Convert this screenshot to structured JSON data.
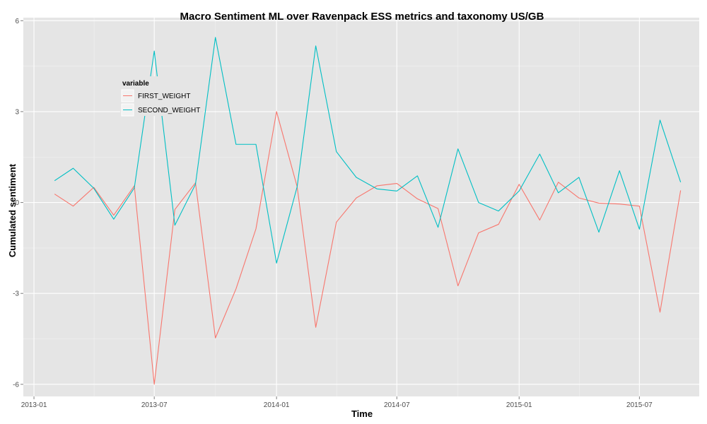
{
  "chart_data": {
    "type": "line",
    "title": "Macro Sentiment ML over Ravenpack ESS metrics and taxonomy US/GB",
    "xlabel": "Time",
    "ylabel": "Cumulated sentiment",
    "x_ticks": [
      "2013-01",
      "2013-07",
      "2014-01",
      "2014-07",
      "2015-01",
      "2015-07"
    ],
    "y_ticks": [
      -6,
      -3,
      0,
      3,
      6
    ],
    "ylim": [
      -6.4,
      6.1
    ],
    "xlim": [
      "2012-12-16",
      "2015-09-29"
    ],
    "grid": true,
    "background": "#e5e5e5",
    "legend": {
      "title": "variable",
      "placement": "top-left inside plot"
    },
    "x": [
      "2013-02-01",
      "2013-03-01",
      "2013-04-01",
      "2013-05-01",
      "2013-06-01",
      "2013-07-01",
      "2013-08-01",
      "2013-09-01",
      "2013-10-01",
      "2013-11-01",
      "2013-12-01",
      "2014-01-01",
      "2014-02-01",
      "2014-03-01",
      "2014-04-01",
      "2014-05-01",
      "2014-06-01",
      "2014-07-01",
      "2014-08-01",
      "2014-09-01",
      "2014-10-01",
      "2014-11-01",
      "2014-12-01",
      "2015-01-01",
      "2015-02-01",
      "2015-03-01",
      "2015-04-01",
      "2015-05-01",
      "2015-06-01",
      "2015-07-01",
      "2015-08-01",
      "2015-09-01"
    ],
    "series": [
      {
        "name": "FIRST_WEIGHT",
        "color": "#f8766d",
        "values": [
          0.28,
          -0.12,
          0.5,
          -0.42,
          0.55,
          -6.0,
          -0.23,
          0.65,
          -4.47,
          -2.85,
          -0.87,
          3.0,
          0.52,
          -4.12,
          -0.65,
          0.15,
          0.55,
          0.63,
          0.12,
          -0.2,
          -2.75,
          -1.0,
          -0.72,
          0.6,
          -0.58,
          0.67,
          0.15,
          -0.02,
          -0.05,
          -0.12,
          -3.62,
          0.4
        ]
      },
      {
        "name": "SECOND_WEIGHT",
        "color": "#00bfc4",
        "values": [
          0.72,
          1.13,
          0.47,
          -0.55,
          0.48,
          5.0,
          -0.75,
          0.6,
          5.45,
          1.92,
          1.92,
          -2.0,
          0.52,
          5.17,
          1.68,
          0.83,
          0.45,
          0.38,
          0.88,
          -0.82,
          1.77,
          0.0,
          -0.28,
          0.38,
          1.6,
          0.32,
          0.83,
          -0.98,
          1.05,
          -0.88,
          2.72,
          0.67
        ]
      }
    ]
  }
}
